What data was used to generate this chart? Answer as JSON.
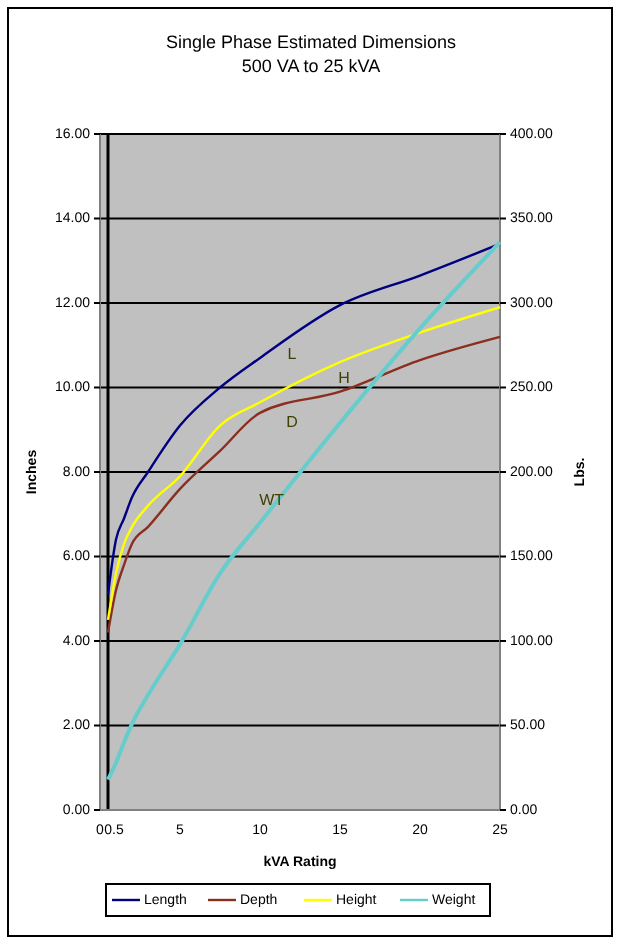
{
  "chart_data": {
    "type": "line",
    "title": "Single Phase Estimated Dimensions",
    "subtitle": "500 VA to 25 kVA",
    "xlabel": "kVA Rating",
    "ylabel": "Inches",
    "y2label": "Lbs.",
    "x": [
      0.5,
      1,
      1.5,
      2,
      3,
      5,
      7.5,
      10,
      15,
      20,
      25
    ],
    "xlim": [
      0,
      25
    ],
    "xticks": [
      0,
      0.5,
      5,
      10,
      15,
      20,
      25
    ],
    "ylim": [
      0,
      16
    ],
    "yticks": [
      {
        "value": 0,
        "label": "0.00"
      },
      {
        "value": 2,
        "label": "2.00"
      },
      {
        "value": 4,
        "label": "4.00"
      },
      {
        "value": 6,
        "label": "6.00"
      },
      {
        "value": 8,
        "label": "8.00"
      },
      {
        "value": 10,
        "label": "10.00"
      },
      {
        "value": 12,
        "label": "12.00"
      },
      {
        "value": 14,
        "label": "14.00"
      },
      {
        "value": 16,
        "label": "16.00"
      }
    ],
    "y2lim": [
      0,
      400
    ],
    "y2ticks": [
      {
        "value": 0,
        "label": "0.00"
      },
      {
        "value": 50,
        "label": "50.00"
      },
      {
        "value": 100,
        "label": "100.00"
      },
      {
        "value": 150,
        "label": "150.00"
      },
      {
        "value": 200,
        "label": "200.00"
      },
      {
        "value": 250,
        "label": "250.00"
      },
      {
        "value": 300,
        "label": "300.00"
      },
      {
        "value": 350,
        "label": "350.00"
      },
      {
        "value": 400,
        "label": "400.00"
      }
    ],
    "series": [
      {
        "name": "Length",
        "color": "#000080",
        "values": [
          5.1,
          6.4,
          6.9,
          7.4,
          8.0,
          9.1,
          10.0,
          10.7,
          11.95,
          12.65,
          13.4
        ]
      },
      {
        "name": "Depth",
        "color": "#8b2e1e",
        "values": [
          4.2,
          5.2,
          5.8,
          6.3,
          6.7,
          7.6,
          8.5,
          9.4,
          9.9,
          10.65,
          11.2
        ]
      },
      {
        "name": "Height",
        "color": "#ffff00",
        "values": [
          4.5,
          5.6,
          6.3,
          6.7,
          7.2,
          7.9,
          9.1,
          9.65,
          10.6,
          11.3,
          11.9
        ]
      },
      {
        "name": "Weight",
        "color": "#66cccc",
        "axis": "y2",
        "values": [
          18,
          28,
          40,
          51,
          68,
          98,
          140,
          170,
          229,
          285,
          336
        ]
      }
    ],
    "ref_lines": [
      {
        "axis": "x",
        "value": 0.5,
        "color": "#000000"
      }
    ],
    "annotations": [
      "L",
      "D",
      "H",
      "WT"
    ],
    "grid": "y",
    "legend": "bottom",
    "marker": "none",
    "line_style": "solid"
  }
}
